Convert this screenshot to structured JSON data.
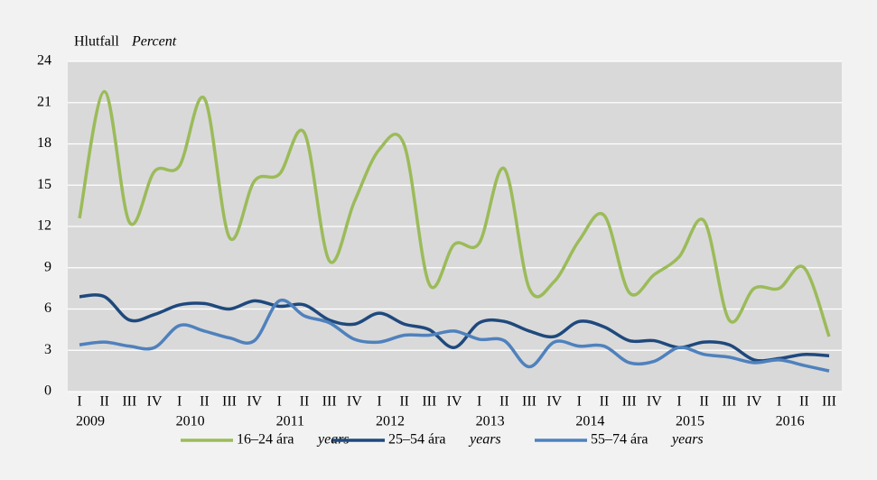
{
  "chart_data": {
    "type": "line",
    "ylabel": "Hlutfall",
    "ylabel_en": "Percent",
    "categories": [
      "I",
      "II",
      "III",
      "IV",
      "I",
      "II",
      "III",
      "IV",
      "I",
      "II",
      "III",
      "IV",
      "I",
      "II",
      "III",
      "IV",
      "I",
      "II",
      "III",
      "IV",
      "I",
      "II",
      "III",
      "IV",
      "I",
      "II",
      "III",
      "IV",
      "I",
      "II",
      "III"
    ],
    "years": [
      "2009",
      "2010",
      "2011",
      "2012",
      "2013",
      "2014",
      "2015",
      "2016"
    ],
    "series": [
      {
        "name": "16–24 ára",
        "name_en": "years",
        "color": "#9bbb59",
        "values": [
          12.6,
          21.8,
          12.3,
          16.0,
          16.4,
          21.3,
          11.2,
          15.3,
          15.8,
          18.8,
          9.5,
          13.8,
          17.6,
          17.9,
          7.8,
          10.7,
          10.8,
          16.2,
          7.5,
          8.0,
          11.0,
          12.8,
          7.2,
          8.5,
          9.8,
          12.4,
          5.2,
          7.5,
          7.5,
          9.0,
          4.0
        ]
      },
      {
        "name": "25–54 ára",
        "name_en": "years",
        "color": "#1f497d",
        "values": [
          6.9,
          6.9,
          5.2,
          5.6,
          6.3,
          6.4,
          6.0,
          6.6,
          6.2,
          6.3,
          5.2,
          4.9,
          5.7,
          4.9,
          4.5,
          3.2,
          5.0,
          5.1,
          4.4,
          4.0,
          5.1,
          4.7,
          3.7,
          3.7,
          3.2,
          3.6,
          3.4,
          2.3,
          2.4,
          2.7,
          2.6
        ]
      },
      {
        "name": "55–74 ára",
        "name_en": "years",
        "color": "#4f81bd",
        "values": [
          3.4,
          3.6,
          3.3,
          3.2,
          4.8,
          4.4,
          3.9,
          3.7,
          6.6,
          5.5,
          5.0,
          3.8,
          3.6,
          4.1,
          4.1,
          4.4,
          3.8,
          3.7,
          1.8,
          3.6,
          3.3,
          3.3,
          2.1,
          2.2,
          3.2,
          2.7,
          2.5,
          2.1,
          2.3,
          1.9,
          1.5
        ]
      }
    ],
    "ylim": [
      0,
      24
    ],
    "yticks": [
      0,
      3,
      6,
      9,
      12,
      15,
      18,
      21,
      24
    ],
    "grid": true
  }
}
